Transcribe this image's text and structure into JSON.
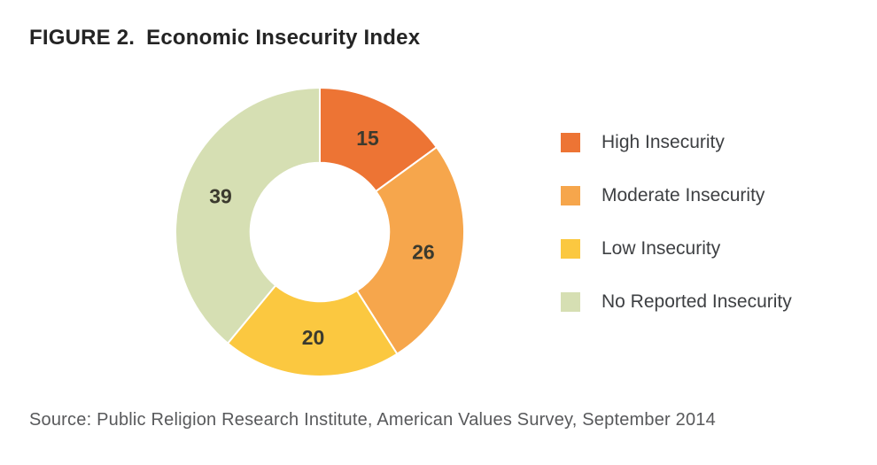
{
  "header": {
    "figure_label": "FIGURE 2.",
    "title": "Economic Insecurity Index"
  },
  "chart_data": {
    "type": "pie",
    "subtype": "donut",
    "title": "FIGURE 2. Economic Insecurity Index",
    "categories": [
      "High Insecurity",
      "Moderate Insecurity",
      "Low Insecurity",
      "No Reported Insecurity"
    ],
    "values": [
      15,
      26,
      20,
      39
    ],
    "unit": "percent",
    "segments": [
      {
        "label": "High Insecurity",
        "value": 15,
        "color": "#ED7434"
      },
      {
        "label": "Moderate Insecurity",
        "value": 26,
        "color": "#F6A64C"
      },
      {
        "label": "Low Insecurity",
        "value": 20,
        "color": "#FBC840"
      },
      {
        "label": "No Reported Insecurity",
        "value": 39,
        "color": "#D6DFB3"
      }
    ],
    "start_angle_deg": 0,
    "direction": "clockwise",
    "inner_radius_ratio": 0.48,
    "label_radius_ratio": 0.73,
    "value_label_color": "#3B3A2E",
    "slice_gap_color": "#FFFFFF",
    "legend_position": "right",
    "legend_swatch_shape": "square"
  },
  "footer": {
    "source": "Source: Public Religion Research Institute, American Values Survey, September 2014"
  }
}
